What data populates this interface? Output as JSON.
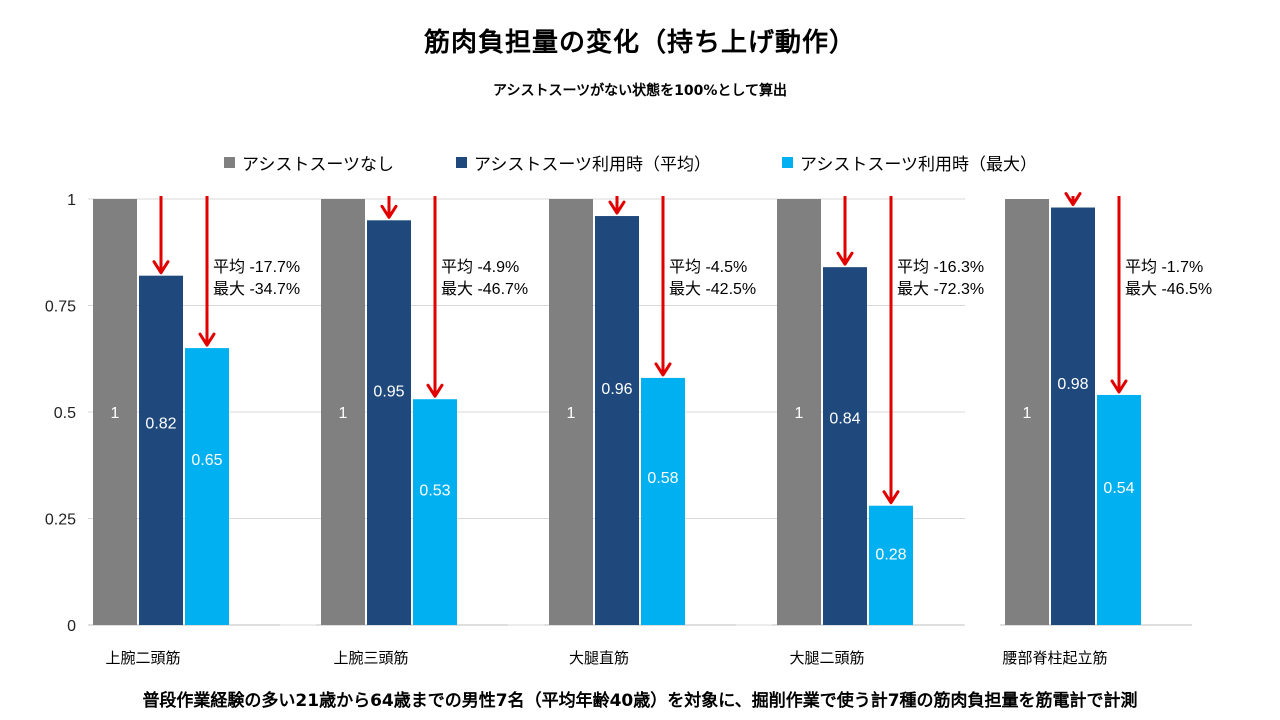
{
  "title": "筋肉負担量の変化（持ち上げ動作）",
  "subtitle": "アシストスーツがない状態を100%として算出",
  "footnote": "普段作業経験の多い21歳から64歳までの男性7名（平均年齢40歳）を対象に、掘削作業で使う計7種の筋肉負担量を筋電計で計測",
  "colors": {
    "none": "#808080",
    "avg": "#1f497d",
    "max": "#00b0f0",
    "arrow": "#e00000",
    "grid": "#d9d9d9"
  },
  "chart_data": {
    "type": "bar",
    "ylim": [
      0,
      1
    ],
    "yticks": [
      "0",
      "0.25",
      "0.5",
      "0.75",
      "1"
    ],
    "ytick_values": [
      0,
      0.25,
      0.5,
      0.75,
      1
    ],
    "legend_position": "top",
    "series": [
      {
        "name": "アシストスーツなし",
        "key": "none"
      },
      {
        "name": "アシストスーツ利用時（平均）",
        "key": "avg"
      },
      {
        "name": "アシストスーツ利用時（最大）",
        "key": "max"
      }
    ],
    "groups": [
      {
        "category": "上腕二頭筋",
        "values": [
          1,
          0.82,
          0.65
        ],
        "labels": [
          "1",
          "0.82",
          "0.65"
        ],
        "ann_avg": "平均 -17.7%",
        "ann_max": "最大 -34.7%"
      },
      {
        "category": "上腕三頭筋",
        "values": [
          1,
          0.95,
          0.53
        ],
        "labels": [
          "1",
          "0.95",
          "0.53"
        ],
        "ann_avg": "平均 -4.9%",
        "ann_max": "最大 -46.7%"
      },
      {
        "category": "大腿直筋",
        "values": [
          1,
          0.96,
          0.58
        ],
        "labels": [
          "1",
          "0.96",
          "0.58"
        ],
        "ann_avg": "平均 -4.5%",
        "ann_max": "最大 -42.5%"
      },
      {
        "category": "大腿二頭筋",
        "values": [
          1,
          0.84,
          0.28
        ],
        "labels": [
          "1",
          "0.84",
          "0.28"
        ],
        "ann_avg": "平均 -16.3%",
        "ann_max": "最大 -72.3%"
      },
      {
        "category": "腰部脊柱起立筋",
        "values": [
          1,
          0.98,
          0.54
        ],
        "labels": [
          "1",
          "0.98",
          "0.54"
        ],
        "ann_avg": "平均 -1.7%",
        "ann_max": "最大 -46.5%"
      }
    ]
  }
}
